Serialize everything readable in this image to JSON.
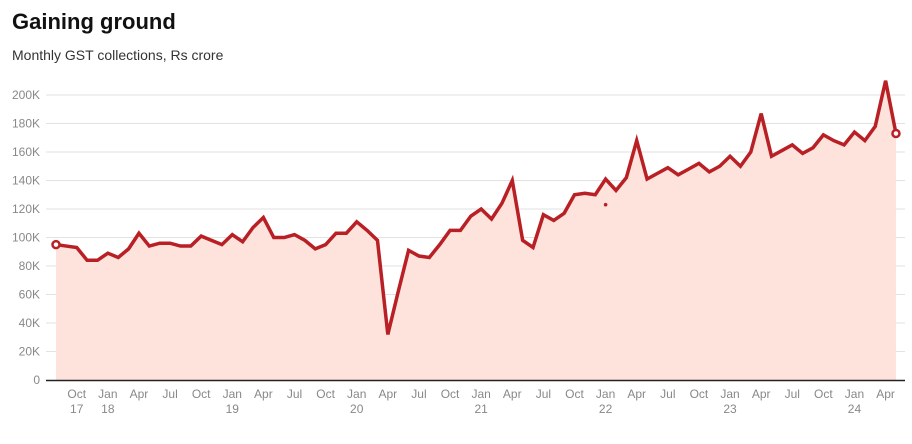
{
  "chart_data": {
    "type": "area",
    "title": "Gaining ground",
    "subtitle": "Monthly GST collections, Rs crore",
    "xlabel": "",
    "ylabel": "",
    "ylim": [
      0,
      200000
    ],
    "y_ticks": [
      "0",
      "20K",
      "40K",
      "60K",
      "80K",
      "100K",
      "120K",
      "140K",
      "160K",
      "180K",
      "200K"
    ],
    "grid": true,
    "start_month": "2017-08",
    "end_month": "2024-05",
    "x_ticks": [
      {
        "month": "2017-10",
        "label": "Oct",
        "year": "17"
      },
      {
        "month": "2018-01",
        "label": "Jan",
        "year": "18"
      },
      {
        "month": "2018-04",
        "label": "Apr"
      },
      {
        "month": "2018-07",
        "label": "Jul"
      },
      {
        "month": "2018-10",
        "label": "Oct"
      },
      {
        "month": "2019-01",
        "label": "Jan",
        "year": "19"
      },
      {
        "month": "2019-04",
        "label": "Apr"
      },
      {
        "month": "2019-07",
        "label": "Jul"
      },
      {
        "month": "2019-10",
        "label": "Oct"
      },
      {
        "month": "2020-01",
        "label": "Jan",
        "year": "20"
      },
      {
        "month": "2020-04",
        "label": "Apr"
      },
      {
        "month": "2020-07",
        "label": "Jul"
      },
      {
        "month": "2020-10",
        "label": "Oct"
      },
      {
        "month": "2021-01",
        "label": "Jan",
        "year": "21"
      },
      {
        "month": "2021-04",
        "label": "Apr"
      },
      {
        "month": "2021-07",
        "label": "Jul"
      },
      {
        "month": "2021-10",
        "label": "Oct"
      },
      {
        "month": "2022-01",
        "label": "Jan",
        "year": "22"
      },
      {
        "month": "2022-04",
        "label": "Apr"
      },
      {
        "month": "2022-07",
        "label": "Jul"
      },
      {
        "month": "2022-10",
        "label": "Oct"
      },
      {
        "month": "2023-01",
        "label": "Jan",
        "year": "23"
      },
      {
        "month": "2023-04",
        "label": "Apr"
      },
      {
        "month": "2023-07",
        "label": "Jul"
      },
      {
        "month": "2023-10",
        "label": "Oct"
      },
      {
        "month": "2024-01",
        "label": "Jan",
        "year": "24"
      },
      {
        "month": "2024-04",
        "label": "Apr"
      }
    ],
    "series": [
      {
        "name": "GST collections",
        "color": "#b82025",
        "fill": "#fde3dc",
        "values": [
          95000,
          94000,
          93000,
          84000,
          84000,
          89000,
          86000,
          92000,
          103000,
          94000,
          96000,
          96000,
          94000,
          94000,
          101000,
          98000,
          95000,
          102000,
          97000,
          107000,
          114000,
          100000,
          100000,
          102000,
          98000,
          92000,
          95000,
          103000,
          103000,
          111000,
          105000,
          98000,
          32000,
          62000,
          91000,
          87000,
          86000,
          95000,
          105000,
          105000,
          115000,
          120000,
          113000,
          124000,
          140000,
          98000,
          93000,
          116000,
          112000,
          117000,
          130000,
          131000,
          130000,
          141000,
          133000,
          142000,
          168000,
          141000,
          145000,
          149000,
          144000,
          148000,
          152000,
          146000,
          150000,
          157000,
          150000,
          160000,
          187000,
          157000,
          161000,
          165000,
          159000,
          163000,
          172000,
          168000,
          165000,
          174000,
          168000,
          178000,
          210000,
          173000
        ]
      }
    ],
    "stray_point": {
      "month": "2022-01",
      "value": 123000
    }
  }
}
